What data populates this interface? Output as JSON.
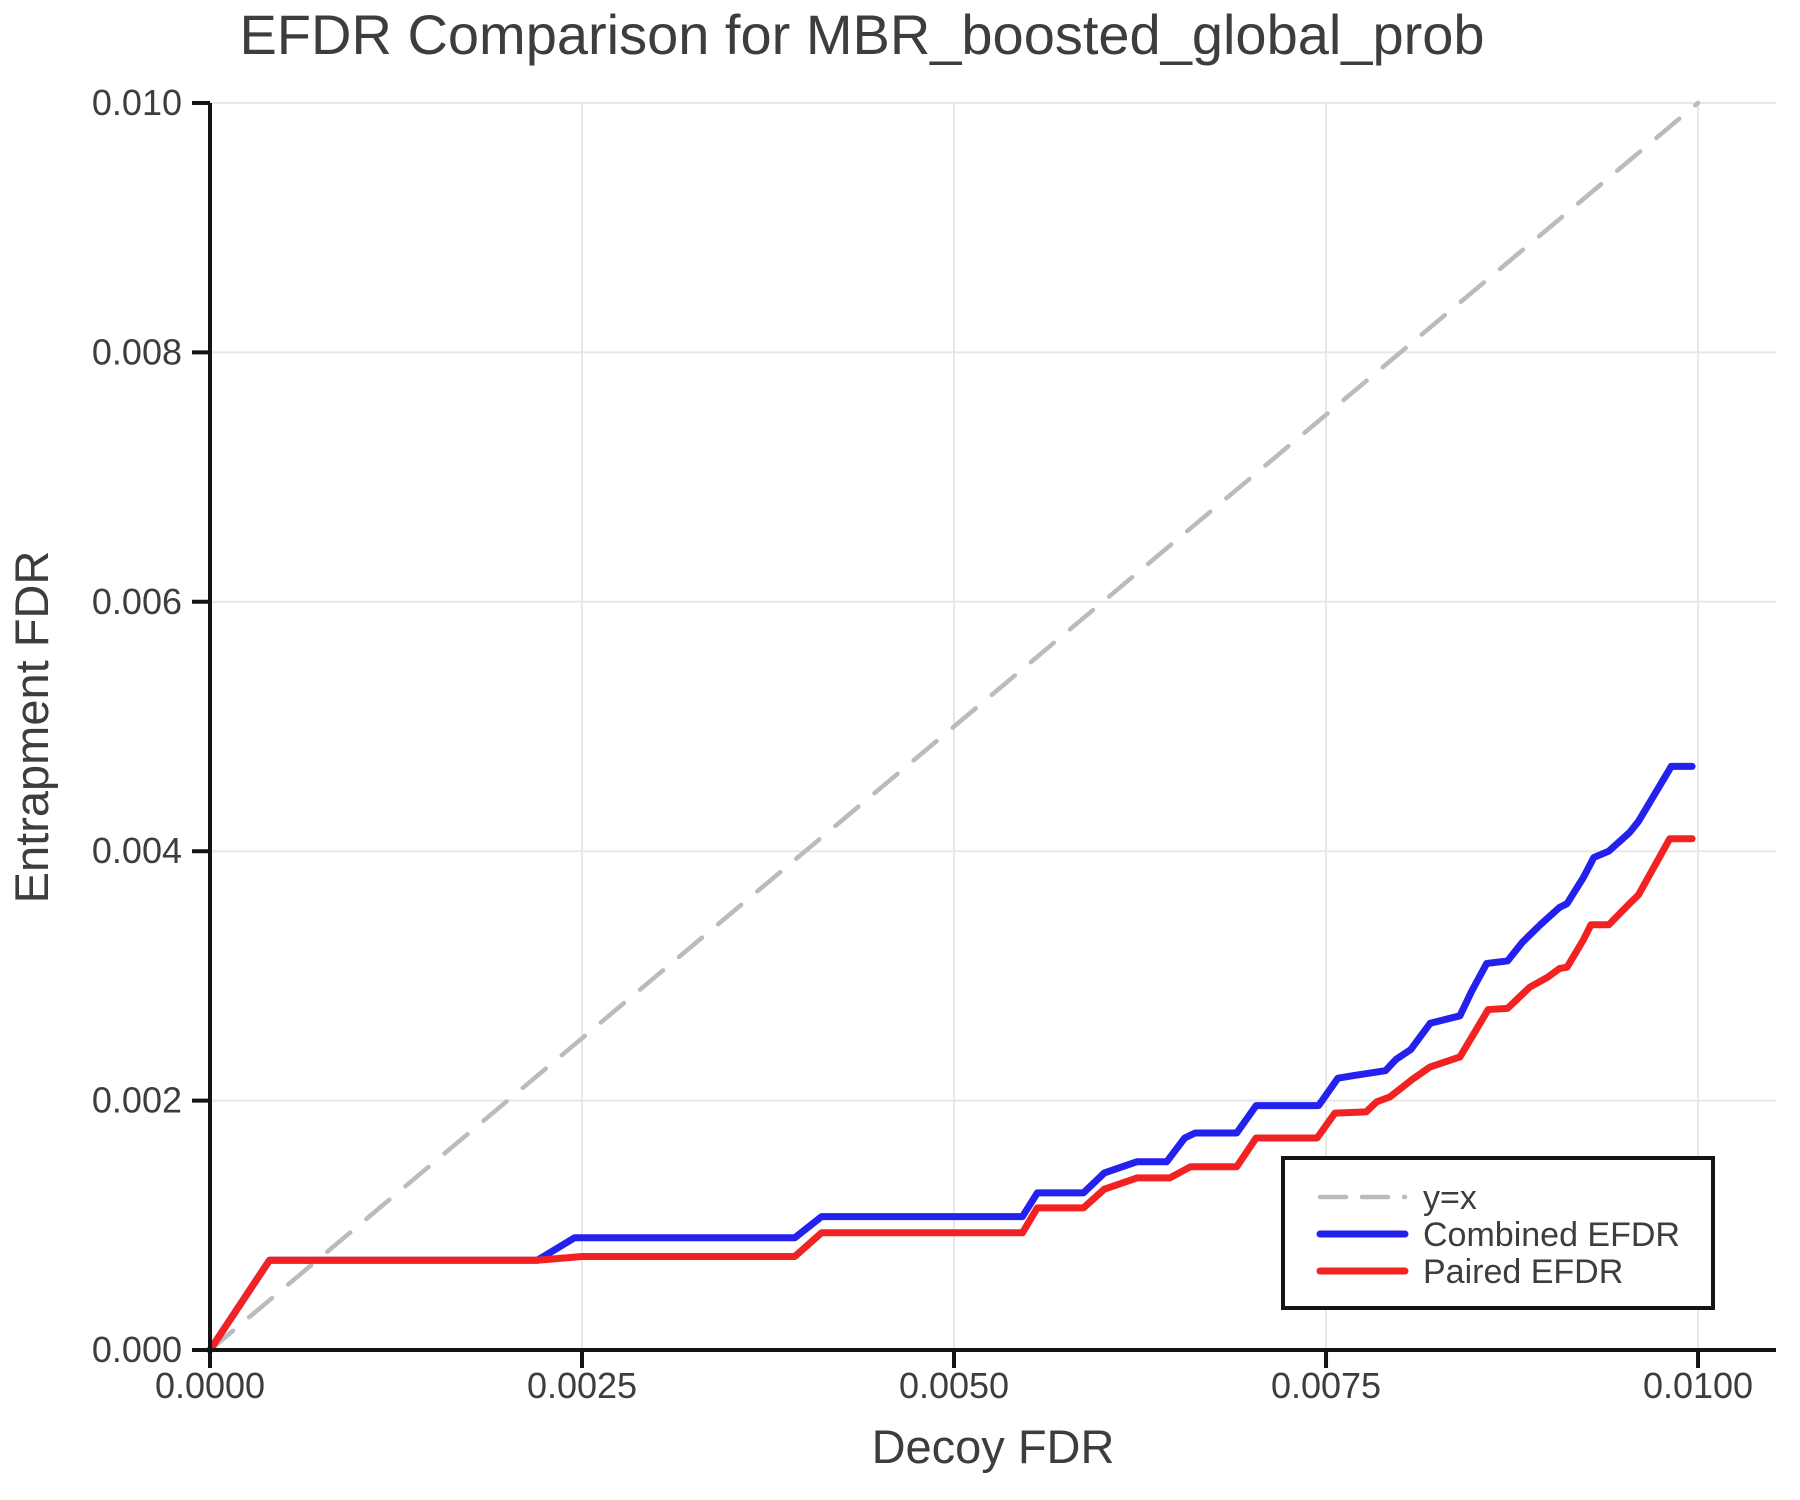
{
  "title": "EFDR Comparison for MBR_boosted_global_prob",
  "colors": {
    "background": "#ffffff",
    "text": "#3d3d3d",
    "axis": "#141414",
    "grid": "#e8e8e8",
    "legend_border": "#141414",
    "identity_line": "#bbbbbb",
    "combined_line": "#2421ee",
    "paired_line": "#f32222"
  },
  "chart_data": {
    "type": "line",
    "title": "EFDR Comparison for MBR_boosted_global_prob",
    "xlabel": "Decoy FDR",
    "ylabel": "Entrapment FDR",
    "xlim": [
      0,
      0.010524
    ],
    "ylim": [
      0,
      0.01
    ],
    "grid": true,
    "legend_position": "lower right",
    "x_ticks": {
      "values": [
        0,
        0.0025,
        0.005,
        0.0075,
        0.01
      ],
      "labels": [
        "0.0000",
        "0.0025",
        "0.0050",
        "0.0075",
        "0.0100"
      ]
    },
    "y_ticks": {
      "values": [
        0,
        0.002,
        0.004,
        0.006,
        0.008,
        0.01
      ],
      "labels": [
        "0.000",
        "0.002",
        "0.004",
        "0.006",
        "0.008",
        "0.010"
      ]
    },
    "series": [
      {
        "name": "y=x",
        "color": "#bbbbbb",
        "style": "dashed",
        "width": 4.5,
        "x": [
          0,
          0.01
        ],
        "y": [
          0,
          0.01
        ]
      },
      {
        "name": "Combined EFDR",
        "color": "#2421ee",
        "style": "solid",
        "width": 7,
        "x": [
          0,
          0.0004,
          0.0022,
          0.00245,
          0.00393,
          0.00411,
          0.00546,
          0.00556,
          0.00587,
          0.00601,
          0.00623,
          0.00643,
          0.00655,
          0.00662,
          0.0069,
          0.00703,
          0.00745,
          0.00758,
          0.00768,
          0.0079,
          0.00797,
          0.00807,
          0.0082,
          0.0084,
          0.00848,
          0.00858,
          0.00872,
          0.00882,
          0.00894,
          0.00907,
          0.00912,
          0.00923,
          0.0093,
          0.0094,
          0.00954,
          0.0096,
          0.00982,
          0.00996
        ],
        "y": [
          0,
          0.00072,
          0.00072,
          0.0009,
          0.0009,
          0.00107,
          0.00107,
          0.00126,
          0.00126,
          0.00142,
          0.00151,
          0.00151,
          0.0017,
          0.00174,
          0.00174,
          0.00196,
          0.00196,
          0.00218,
          0.0022,
          0.00224,
          0.00233,
          0.00241,
          0.00262,
          0.00268,
          0.00288,
          0.0031,
          0.00312,
          0.00327,
          0.00341,
          0.00355,
          0.00358,
          0.00379,
          0.00395,
          0.004,
          0.00415,
          0.00424,
          0.00468,
          0.00468
        ]
      },
      {
        "name": "Paired EFDR",
        "color": "#f32222",
        "style": "solid",
        "width": 7,
        "x": [
          0,
          0.0004,
          0.0022,
          0.0025,
          0.00393,
          0.00411,
          0.00546,
          0.00556,
          0.00587,
          0.00601,
          0.00623,
          0.00645,
          0.00659,
          0.0069,
          0.00703,
          0.00744,
          0.00756,
          0.00777,
          0.00784,
          0.00793,
          0.00808,
          0.0082,
          0.0084,
          0.00859,
          0.00872,
          0.00887,
          0.00899,
          0.00907,
          0.00912,
          0.00923,
          0.00928,
          0.0094,
          0.00954,
          0.0096,
          0.00981,
          0.00996
        ],
        "y": [
          0,
          0.00072,
          0.00072,
          0.00075,
          0.00075,
          0.00094,
          0.00094,
          0.00114,
          0.00114,
          0.00129,
          0.00138,
          0.00138,
          0.00147,
          0.00147,
          0.0017,
          0.0017,
          0.0019,
          0.00191,
          0.00199,
          0.00203,
          0.00217,
          0.00227,
          0.00235,
          0.00273,
          0.00274,
          0.00291,
          0.00299,
          0.00306,
          0.00307,
          0.00329,
          0.00341,
          0.00341,
          0.00358,
          0.00365,
          0.0041,
          0.0041
        ]
      }
    ]
  }
}
